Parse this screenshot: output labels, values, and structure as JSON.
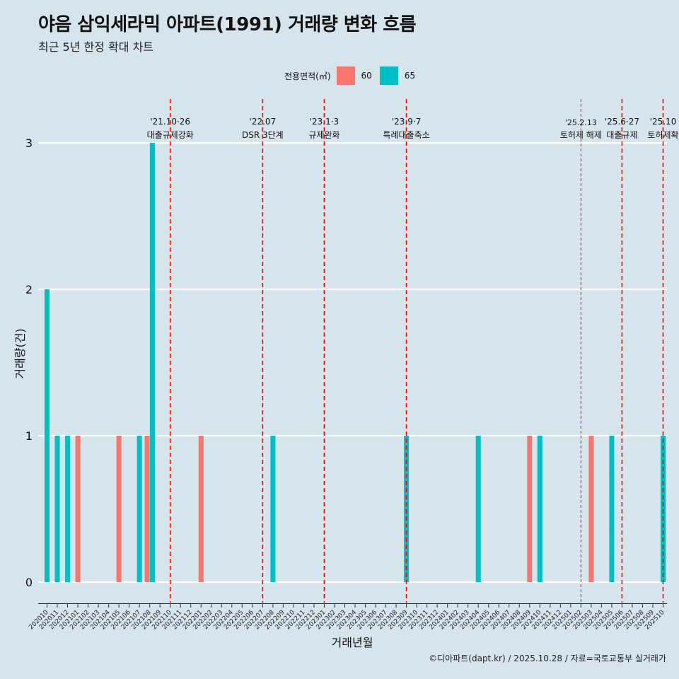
{
  "title": "야음 삼익세라믹 아파트(1991) 거래량 변화 흐름",
  "subtitle": "최근 5년 한정 확대 차트",
  "caption": "©디아파트(dapt.kr) / 2025.10.28 / 자료=국토교통부 실거래가",
  "legend": {
    "title": "전용면적(㎡)",
    "items": [
      {
        "label": "60",
        "color": "#f8766d"
      },
      {
        "label": "65",
        "color": "#00bfc4"
      }
    ]
  },
  "chart_data": {
    "type": "bar",
    "xlabel": "거래년월",
    "ylabel": "거래량(건)",
    "ylim": [
      -0.14,
      3.3
    ],
    "yticks": [
      0,
      1,
      2,
      3
    ],
    "grid": true,
    "categories": [
      "202010",
      "202011",
      "202012",
      "202101",
      "202102",
      "202103",
      "202104",
      "202105",
      "202106",
      "202107",
      "202108",
      "202109",
      "202110",
      "202111",
      "202112",
      "202201",
      "202202",
      "202203",
      "202204",
      "202205",
      "202206",
      "202207",
      "202208",
      "202209",
      "202210",
      "202211",
      "202212",
      "202301",
      "202302",
      "202303",
      "202304",
      "202305",
      "202306",
      "202307",
      "202308",
      "202309",
      "202310",
      "202311",
      "202312",
      "202401",
      "202402",
      "202403",
      "202404",
      "202405",
      "202406",
      "202407",
      "202408",
      "202409",
      "202410",
      "202411",
      "202412",
      "202501",
      "202502",
      "202503",
      "202504",
      "202505",
      "202506",
      "202507",
      "202508",
      "202509",
      "202510"
    ],
    "series": [
      {
        "name": "60",
        "color": "#f8766d",
        "points": [
          {
            "x": "202101",
            "y": 1
          },
          {
            "x": "202105",
            "y": 1
          },
          {
            "x": "202108",
            "y": 1
          },
          {
            "x": "202201",
            "y": 1
          },
          {
            "x": "202409",
            "y": 1
          },
          {
            "x": "202503",
            "y": 1
          }
        ]
      },
      {
        "name": "65",
        "color": "#00bfc4",
        "points": [
          {
            "x": "202010",
            "y": 2
          },
          {
            "x": "202011",
            "y": 1
          },
          {
            "x": "202012",
            "y": 1
          },
          {
            "x": "202107",
            "y": 1
          },
          {
            "x": "202108",
            "y": 3
          },
          {
            "x": "202208",
            "y": 1
          },
          {
            "x": "202309",
            "y": 1
          },
          {
            "x": "202404",
            "y": 1
          },
          {
            "x": "202410",
            "y": 1
          },
          {
            "x": "202505",
            "y": 1
          },
          {
            "x": "202510",
            "y": 1
          }
        ]
      }
    ],
    "annotations": [
      {
        "x": "202110",
        "date": "'21.10·26",
        "label": "대출규제강화",
        "style": "thick"
      },
      {
        "x": "202207",
        "date": "'22.07",
        "label": "DSR 3단계",
        "style": "thick"
      },
      {
        "x": "202301",
        "date": "'23.1·3",
        "label": "규제완화",
        "style": "thick"
      },
      {
        "x": "202309",
        "date": "'23.9·7",
        "label": "특례대출축소",
        "style": "thick"
      },
      {
        "x": "202502",
        "date": "'25.2.13",
        "label": "토허제 해제",
        "style": "thin"
      },
      {
        "x": "202506",
        "date": "'25.6·27",
        "label": "대출규제",
        "style": "thick"
      },
      {
        "x": "202510",
        "date": "'25.10",
        "label": "토허제확",
        "style": "thick"
      }
    ]
  }
}
